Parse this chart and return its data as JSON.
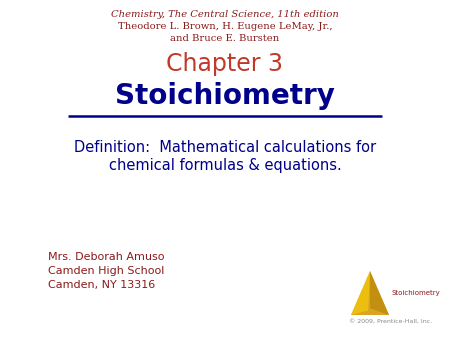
{
  "bg_color": "#ffffff",
  "line1_italic": "Chemistry, The Central Science",
  "line1_normal": ", 11th edition",
  "line2": "Theodore L. Brown, H. Eugene LeMay, Jr.,",
  "line3": "and Bruce E. Bursten",
  "chapter": "Chapter 3",
  "title": "Stoichiometry",
  "def_line1": "Definition:  Mathematical calculations for",
  "def_line2": "chemical formulas & equations.",
  "name": "Mrs. Deborah Amuso",
  "school": "Camden High School",
  "city": "Camden, NY 13316",
  "copyright": "© 2009, Prentice-Hall, Inc.",
  "logo_text": "Stoichiometry",
  "header_color": "#8B1A1A",
  "chapter_color": "#C0392B",
  "title_color": "#00008B",
  "definition_color": "#00008B",
  "footer_color": "#8B1A1A",
  "logo_color": "#8B1A1A",
  "copyright_color": "#888888",
  "tri_main": "#DAA520",
  "tri_light": "#FFD700",
  "tri_shadow": "#B8860B",
  "header_fontsize": 7.2,
  "chapter_fontsize": 17,
  "title_fontsize": 20,
  "def_fontsize": 10.5,
  "footer_fontsize": 8,
  "logo_fontsize": 5,
  "copy_fontsize": 4.5
}
